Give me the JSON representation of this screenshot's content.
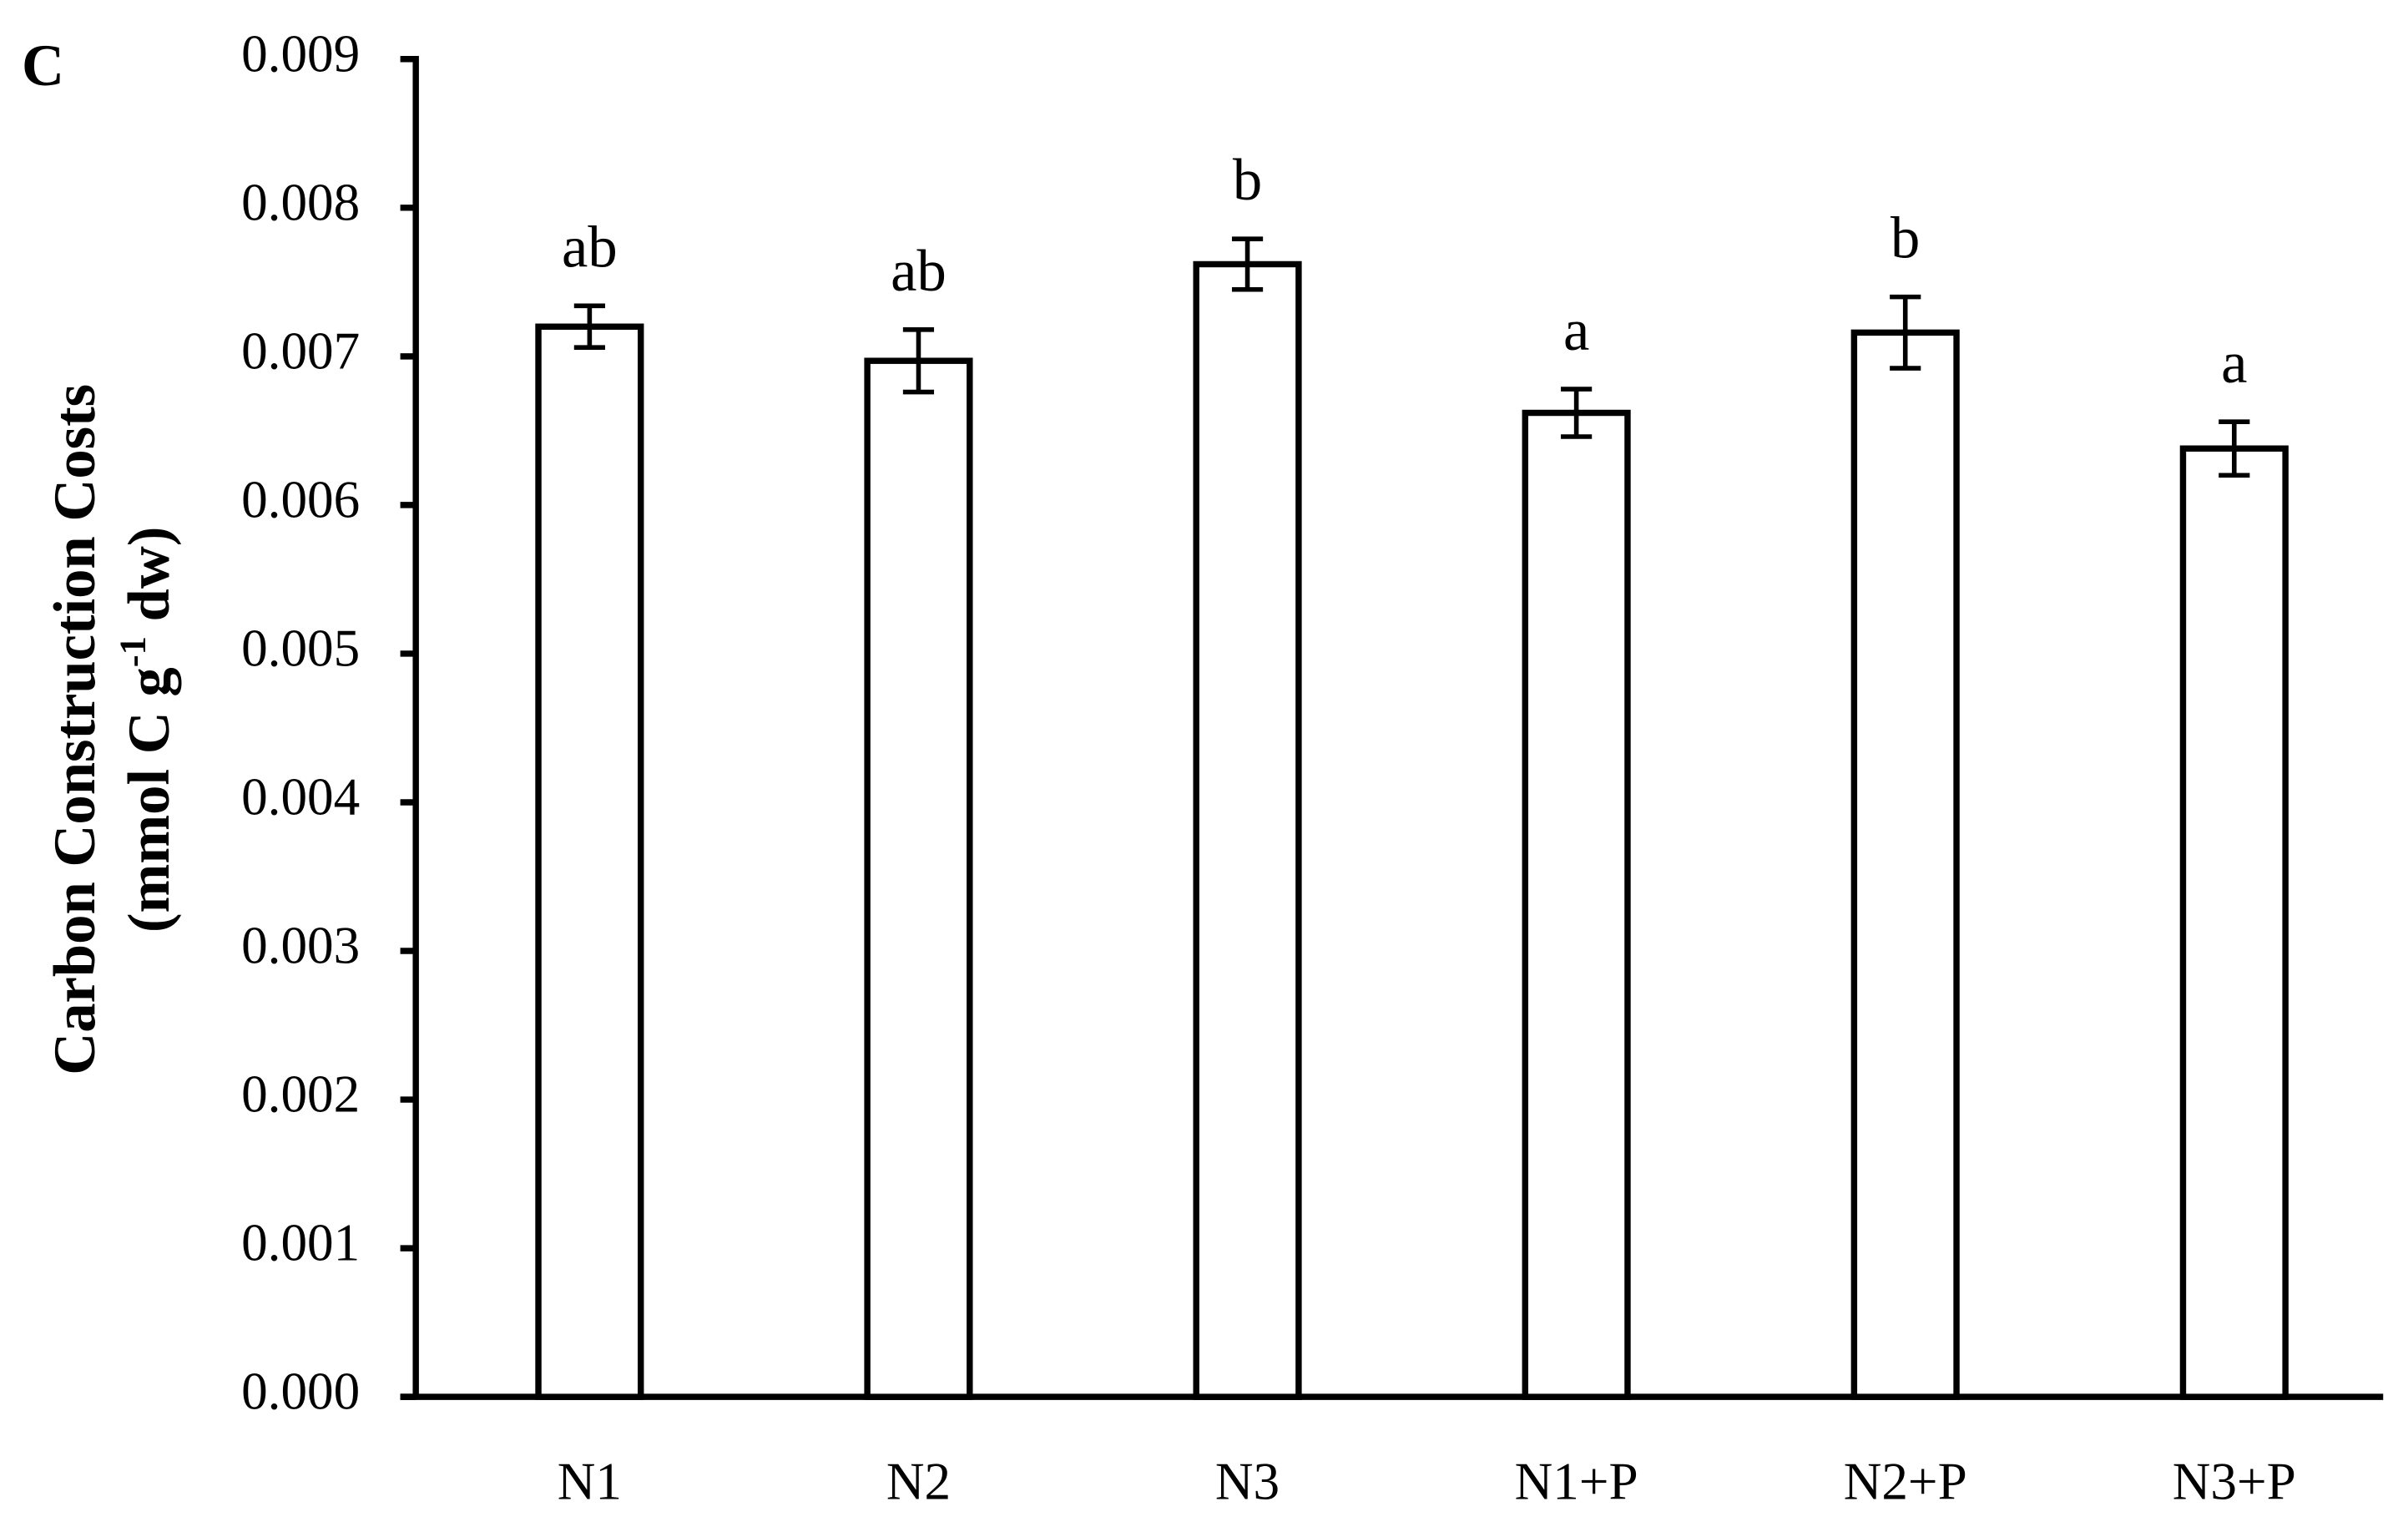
{
  "chart_data": {
    "type": "bar",
    "panel_label": "C",
    "y_label": {
      "line1": "Carbon Construction Costs",
      "line2_before": "(mmol C g",
      "line2_sup": "-1",
      "line2_after": " dw)"
    },
    "categories": [
      "N1",
      "N2",
      "N3",
      "N1+P",
      "N2+P",
      "N3+P"
    ],
    "values": [
      0.0072,
      0.00697,
      0.00762,
      0.00662,
      0.00716,
      0.00638
    ],
    "errors": [
      0.00014,
      0.00021,
      0.00017,
      0.00016,
      0.00024,
      0.00018
    ],
    "annotations": [
      "ab",
      "ab",
      "b",
      "a",
      "b",
      "a"
    ],
    "color": "#ffffff",
    "edgecolor": "#000000",
    "ylim": [
      0,
      0.009
    ],
    "yticks": [
      {
        "value": 0,
        "label": "0.000"
      },
      {
        "value": 0.001,
        "label": "0.001"
      },
      {
        "value": 0.002,
        "label": "0.002"
      },
      {
        "value": 0.003,
        "label": "0.003"
      },
      {
        "value": 0.004,
        "label": "0.004"
      },
      {
        "value": 0.005,
        "label": "0.005"
      },
      {
        "value": 0.006,
        "label": "0.006"
      },
      {
        "value": 0.007,
        "label": "0.007"
      },
      {
        "value": 0.008,
        "label": "0.008"
      },
      {
        "value": 0.009,
        "label": "0.009"
      }
    ],
    "grid": false
  }
}
